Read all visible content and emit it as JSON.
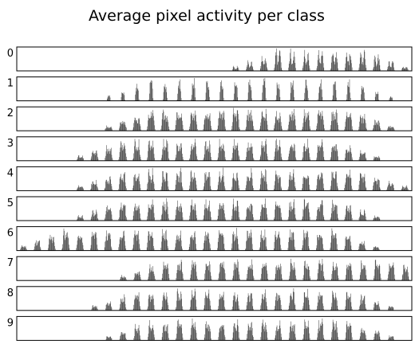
{
  "chart_data": {
    "type": "bar",
    "title": "Average pixel activity per class",
    "xlabel": "",
    "ylabel": "",
    "grid": false,
    "x_ticks_shown": false,
    "y_ticks_shown": false,
    "bar_color": "#444444",
    "num_positions": 784,
    "row_length": 28,
    "ylim": [
      0,
      1
    ],
    "rows": [
      {
        "label": "0",
        "center": 14.0,
        "width": 6.2,
        "sigma": 3.4,
        "dip": 0.55,
        "top": 15,
        "bottom": 27
      },
      {
        "label": "1",
        "center": 14.2,
        "width": 3.0,
        "sigma": 1.3,
        "dip": 0.0,
        "top": 6,
        "bottom": 26
      },
      {
        "label": "2",
        "center": 14.0,
        "width": 7.0,
        "sigma": 3.8,
        "dip": 0.15,
        "top": 6,
        "bottom": 26
      },
      {
        "label": "3",
        "center": 14.0,
        "width": 6.5,
        "sigma": 3.6,
        "dip": 0.25,
        "top": 4,
        "bottom": 25
      },
      {
        "label": "4",
        "center": 13.5,
        "width": 6.5,
        "sigma": 3.6,
        "dip": 0.3,
        "top": 4,
        "bottom": 27
      },
      {
        "label": "5",
        "center": 13.8,
        "width": 6.5,
        "sigma": 3.6,
        "dip": 0.25,
        "top": 4,
        "bottom": 25
      },
      {
        "label": "6",
        "center": 12.8,
        "width": 6.0,
        "sigma": 3.4,
        "dip": 0.2,
        "top": 0,
        "bottom": 25
      },
      {
        "label": "7",
        "center": 15.0,
        "width": 6.0,
        "sigma": 3.2,
        "dip": 0.2,
        "top": 7,
        "bottom": 29
      },
      {
        "label": "8",
        "center": 14.0,
        "width": 5.5,
        "sigma": 3.2,
        "dip": 0.3,
        "top": 5,
        "bottom": 26
      },
      {
        "label": "9",
        "center": 14.5,
        "width": 5.5,
        "sigma": 3.2,
        "dip": 0.25,
        "top": 6,
        "bottom": 26
      }
    ]
  }
}
